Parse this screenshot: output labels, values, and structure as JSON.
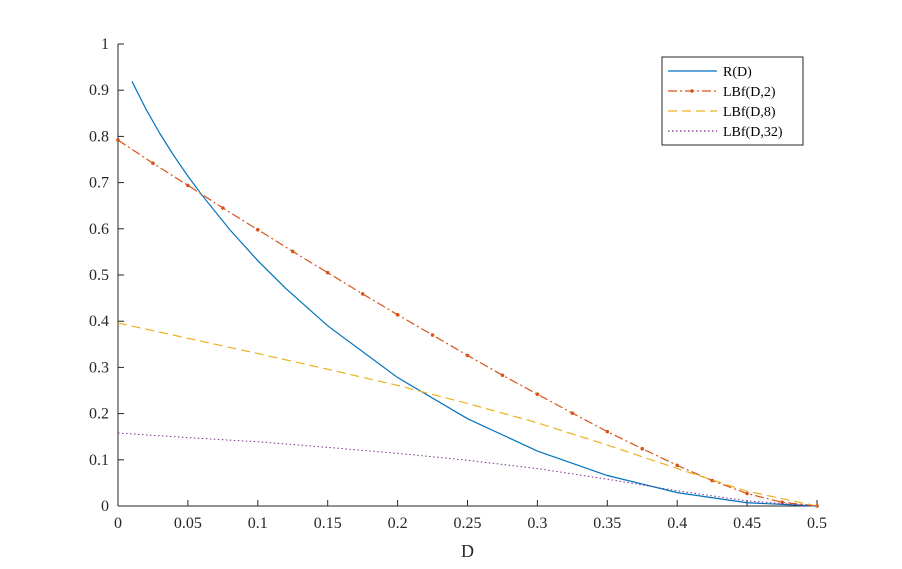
{
  "chart_data": {
    "type": "line",
    "title": "",
    "xlabel": "D",
    "ylabel": "",
    "xlim": [
      0,
      0.5
    ],
    "ylim": [
      0,
      1
    ],
    "grid": false,
    "legend_position": "top-right",
    "x_ticks": [
      0,
      0.05,
      0.1,
      0.15,
      0.2,
      0.25,
      0.3,
      0.35,
      0.4,
      0.45,
      0.5
    ],
    "x_tick_labels": [
      "0",
      "0.05",
      "0.1",
      "0.15",
      "0.2",
      "0.25",
      "0.3",
      "0.35",
      "0.4",
      "0.45",
      "0.5"
    ],
    "y_ticks": [
      0,
      0.1,
      0.2,
      0.3,
      0.4,
      0.5,
      0.6,
      0.7,
      0.8,
      0.9,
      1
    ],
    "y_tick_labels": [
      "0",
      "0.1",
      "0.2",
      "0.3",
      "0.4",
      "0.5",
      "0.6",
      "0.7",
      "0.8",
      "0.9",
      "1"
    ],
    "series": [
      {
        "name": "R(D)",
        "color": "#0072BD",
        "style": "solid",
        "marker": "none",
        "x": [
          0.01,
          0.02,
          0.03,
          0.04,
          0.05,
          0.06,
          0.08,
          0.1,
          0.12,
          0.15,
          0.2,
          0.25,
          0.3,
          0.35,
          0.4,
          0.45,
          0.5
        ],
        "y": [
          0.919,
          0.859,
          0.806,
          0.758,
          0.714,
          0.673,
          0.598,
          0.531,
          0.471,
          0.39,
          0.278,
          0.189,
          0.119,
          0.066,
          0.029,
          0.007,
          0.0
        ]
      },
      {
        "name": "LBf(D,2)",
        "color": "#D95319",
        "style": "dashdot",
        "marker": "dot",
        "x": [
          0,
          0.025,
          0.05,
          0.075,
          0.1,
          0.125,
          0.15,
          0.175,
          0.2,
          0.225,
          0.25,
          0.275,
          0.3,
          0.325,
          0.35,
          0.375,
          0.4,
          0.425,
          0.45,
          0.475,
          0.5
        ],
        "y": [
          0.792,
          0.742,
          0.694,
          0.645,
          0.598,
          0.551,
          0.505,
          0.459,
          0.414,
          0.37,
          0.326,
          0.283,
          0.242,
          0.201,
          0.161,
          0.124,
          0.088,
          0.055,
          0.027,
          0.008,
          0.0
        ]
      },
      {
        "name": "LBf(D,8)",
        "color": "#EDB120",
        "style": "dashed",
        "marker": "none",
        "x": [
          0,
          0.05,
          0.1,
          0.15,
          0.2,
          0.25,
          0.3,
          0.35,
          0.4,
          0.45,
          0.5
        ],
        "y": [
          0.396,
          0.363,
          0.33,
          0.296,
          0.261,
          0.222,
          0.18,
          0.132,
          0.081,
          0.032,
          0.0
        ]
      },
      {
        "name": "LBf(D,32)",
        "color": "#7E2F8E",
        "style": "dotted",
        "marker": "none",
        "x": [
          0,
          0.05,
          0.1,
          0.15,
          0.2,
          0.25,
          0.3,
          0.35,
          0.4,
          0.45,
          0.5
        ],
        "y": [
          0.158,
          0.148,
          0.139,
          0.127,
          0.114,
          0.099,
          0.081,
          0.058,
          0.033,
          0.011,
          0.0
        ]
      }
    ]
  }
}
